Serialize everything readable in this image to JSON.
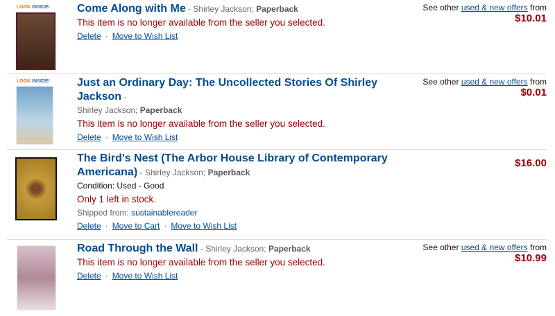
{
  "items": [
    {
      "title": "Come Along with Me",
      "author": "Shirley Jackson",
      "format": "Paperback",
      "message": "This item is no longer available from the seller you selected.",
      "look_inside": [
        "LOOK",
        "INSIDE!"
      ],
      "offers_prefix": "See other",
      "offers_link": "used & new offers",
      "offers_suffix": "from",
      "price": "$10.01",
      "actions": [
        "Delete",
        "Move to Wish List"
      ],
      "cover_color": "#5a3a2a"
    },
    {
      "title": "Just an Ordinary Day: The Uncollected Stories Of Shirley Jackson",
      "author": "Shirley Jackson",
      "format": "Paperback",
      "message": "This item is no longer available from the seller you selected.",
      "look_inside": [
        "LOOK",
        "INSIDE!"
      ],
      "offers_prefix": "See other",
      "offers_link": "used & new offers",
      "offers_suffix": "from",
      "price": "$0.01",
      "actions": [
        "Delete",
        "Move to Wish List"
      ],
      "cover_color": "#8bb7d6"
    },
    {
      "title": "The Bird's Nest (The Arbor House Library of Contemporary Americana)",
      "author": "Shirley Jackson",
      "format": "Paperback",
      "condition": "Condition: Used - Good",
      "stock": "Only 1 left in stock.",
      "shipped_label": "Shipped from:",
      "seller": "sustainablereader",
      "price": "$16.00",
      "actions": [
        "Delete",
        "Move to Cart",
        "Move to Wish List"
      ],
      "cover_color": "#b8922e"
    },
    {
      "title": "Road Through the Wall",
      "author": "Shirley Jackson",
      "format": "Paperback",
      "message": "This item is no longer available from the seller you selected.",
      "offers_prefix": "See other",
      "offers_link": "used & new offers",
      "offers_suffix": "from",
      "price": "$10.99",
      "actions": [
        "Delete",
        "Move to Wish List"
      ],
      "cover_color": "#c9a8b8"
    }
  ]
}
